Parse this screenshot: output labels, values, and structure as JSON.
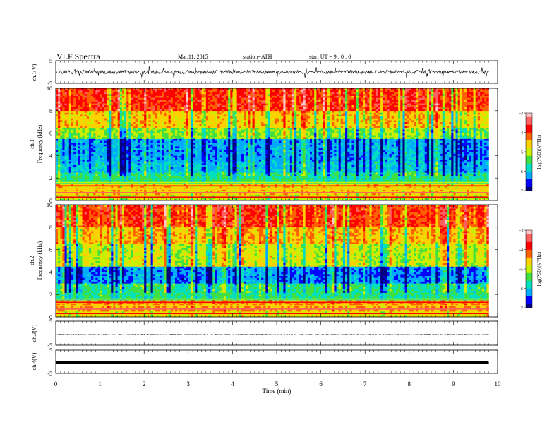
{
  "header": {
    "title": "VLF  Spectra",
    "date": "Mar.11, 2015",
    "station": "station=ATH",
    "start": "start  UT  =    9  : 0  : 0"
  },
  "colors": {
    "colormap": [
      "#000080",
      "#0000ff",
      "#00aaff",
      "#00e0c0",
      "#40e040",
      "#c8f000",
      "#ffd000",
      "#ff6000",
      "#ff0000",
      "#ff6060",
      "#ffc8c8"
    ]
  },
  "chart_data": [
    {
      "type": "line",
      "ylabel": "ch.1(V)",
      "ylim": [
        -5,
        5
      ],
      "ytick_labels": [
        "5",
        "-5"
      ],
      "xlim": [
        0,
        10
      ],
      "description": "broadband waveform near 0 V with large noisy spikes"
    },
    {
      "type": "heatmap",
      "ylabel": "ch.1\nFrequency  (kHz)",
      "ylabel_lines": [
        "ch.1",
        "Frequency  (kHz)"
      ],
      "ylim": [
        0,
        10
      ],
      "ytick_labels": [
        "0",
        "2",
        "4",
        "6",
        "8",
        "10"
      ],
      "xlim": [
        0,
        10
      ],
      "data_end_min": 9.8,
      "colorbar": {
        "label": "log(PSD)(V²/Hz)",
        "range": [
          -7,
          -3
        ],
        "tick_labels": [
          "-3",
          "-4",
          "-5",
          "-6",
          "-7"
        ]
      },
      "bands": [
        [
          0,
          0.5,
          -5.0
        ],
        [
          0.5,
          1.5,
          -4.6
        ],
        [
          1.5,
          2.5,
          -5.6
        ],
        [
          2.5,
          3.5,
          -6.0
        ],
        [
          3.5,
          5.5,
          -6.2
        ],
        [
          5.5,
          6.5,
          -5.2
        ],
        [
          6.5,
          8.0,
          -4.6
        ],
        [
          8.0,
          10.0,
          -3.9
        ]
      ]
    },
    {
      "type": "heatmap",
      "ylabel": "ch.2\nFrequency  (kHz)",
      "ylabel_lines": [
        "ch.2",
        "Frequency  (kHz)"
      ],
      "ylim": [
        0,
        10
      ],
      "ytick_labels": [
        "0",
        "2",
        "4",
        "6",
        "8",
        "10"
      ],
      "xlim": [
        0,
        10
      ],
      "data_end_min": 9.8,
      "colorbar": {
        "label": "log(PSD)(V²/Hz)",
        "range": [
          -7,
          -3
        ],
        "tick_labels": [
          "-3",
          "-4",
          "-5",
          "-6",
          "-7"
        ]
      },
      "bands": [
        [
          0,
          0.5,
          -4.8
        ],
        [
          0.5,
          1.5,
          -4.4
        ],
        [
          1.5,
          3.0,
          -5.6
        ],
        [
          3.0,
          4.5,
          -6.3
        ],
        [
          4.5,
          6.5,
          -5.0
        ],
        [
          6.5,
          8.0,
          -4.5
        ],
        [
          8.0,
          10.0,
          -4.0
        ]
      ]
    },
    {
      "type": "line",
      "ylabel": "ch.3(V)",
      "ylim": [
        -5,
        5
      ],
      "ytick_labels": [
        "5",
        "-5"
      ],
      "xlim": [
        0,
        10
      ],
      "description": "flat trace slightly below 0 V"
    },
    {
      "type": "line",
      "ylabel": "ch.4(V)",
      "ylim": [
        -5,
        5
      ],
      "ytick_labels": [
        "5",
        "-5"
      ],
      "xlim": [
        0,
        10
      ],
      "description": "thick flat trace near 0 V"
    }
  ],
  "x_axis": {
    "label": "Time  (min)",
    "tick_labels": [
      "0",
      "1",
      "2",
      "3",
      "4",
      "5",
      "6",
      "7",
      "8",
      "9",
      "10"
    ],
    "range": [
      0,
      10
    ]
  }
}
